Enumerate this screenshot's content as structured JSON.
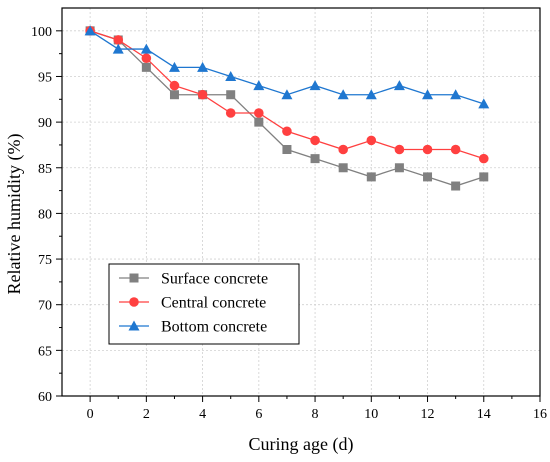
{
  "chart_data": {
    "type": "line",
    "title": "",
    "xlabel": "Curing age (d)",
    "ylabel": "Relative humidity (%)",
    "xlim": [
      -1,
      16
    ],
    "ylim": [
      60,
      102.5
    ],
    "xticks": [
      0,
      2,
      4,
      6,
      8,
      10,
      12,
      14,
      16
    ],
    "yticks": [
      60,
      65,
      70,
      75,
      80,
      85,
      90,
      95,
      100
    ],
    "grid": true,
    "legend_position": "bottom-left",
    "x": [
      0,
      1,
      2,
      3,
      4,
      5,
      6,
      7,
      8,
      9,
      10,
      11,
      12,
      13,
      14
    ],
    "series": [
      {
        "name": "Surface concrete",
        "color": "#808080",
        "marker": "square",
        "values": [
          100,
          99,
          96,
          93,
          93,
          93,
          90,
          87,
          86,
          85,
          84,
          85,
          84,
          83,
          84
        ]
      },
      {
        "name": "Central concrete",
        "color": "#ff4040",
        "marker": "circle",
        "values": [
          100,
          99,
          97,
          94,
          93,
          91,
          91,
          89,
          88,
          87,
          88,
          87,
          87,
          87,
          86
        ]
      },
      {
        "name": "Bottom concrete",
        "color": "#1f77d0",
        "marker": "triangle",
        "values": [
          100,
          98,
          98,
          96,
          96,
          95,
          94,
          93,
          94,
          93,
          93,
          94,
          93,
          93,
          92
        ]
      }
    ]
  }
}
